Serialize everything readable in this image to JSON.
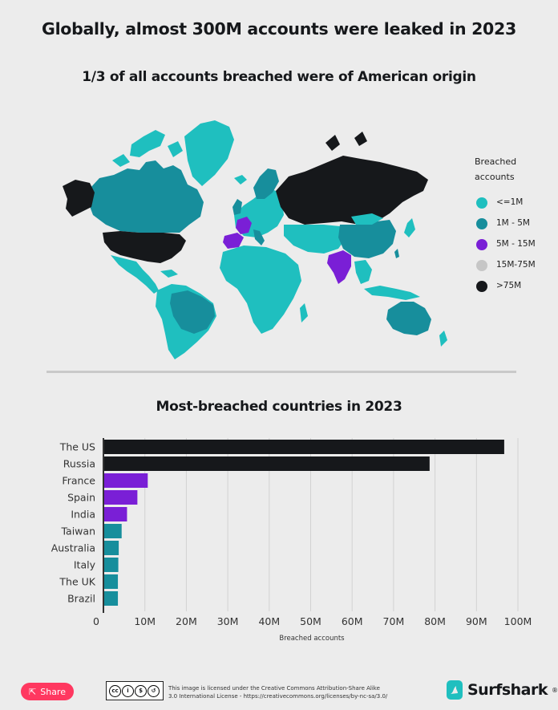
{
  "header": {
    "title": "Globally, almost 300M accounts were leaked in 2023",
    "subtitle": "1/3 of all accounts breached were of American origin"
  },
  "map": {
    "legend": {
      "title_line1": "Breached",
      "title_line2": "accounts",
      "items": [
        {
          "label": "<=1M",
          "color": "#1fbfbf"
        },
        {
          "label": "1M - 5M",
          "color": "#178e9c"
        },
        {
          "label": "5M - 15M",
          "color": "#7a1fd6"
        },
        {
          "label": "15M-75M",
          "color": "#c6c6c6"
        },
        {
          "label": ">75M",
          "color": "#16181b"
        }
      ]
    }
  },
  "chart_section": {
    "title": "Most-breached countries in 2023"
  },
  "chart_data": {
    "type": "bar",
    "orientation": "horizontal",
    "title": "Most-breached countries in 2023",
    "xlabel": "Breached accounts",
    "ylabel": "",
    "xlim": [
      0,
      105
    ],
    "x_ticks": [
      "0",
      "10M",
      "20M",
      "30M",
      "40M",
      "50M",
      "60M",
      "70M",
      "80M",
      "90M",
      "100M"
    ],
    "grid": true,
    "categories": [
      "The US",
      "Russia",
      "France",
      "Spain",
      "India",
      "Taiwan",
      "Australia",
      "Italy",
      "The UK",
      "Brazil"
    ],
    "values": [
      96.5,
      78.5,
      10.5,
      8.0,
      5.5,
      4.2,
      3.5,
      3.4,
      3.3,
      3.3
    ],
    "unit": "M",
    "bar_colors": [
      "#16181b",
      "#16181b",
      "#7a1fd6",
      "#7a1fd6",
      "#7a1fd6",
      "#178e9c",
      "#178e9c",
      "#178e9c",
      "#178e9c",
      "#178e9c"
    ]
  },
  "footer": {
    "share_label": "Share",
    "cc_icons": [
      "cc",
      "by",
      "nc",
      "sa"
    ],
    "license_line1": "This image is licensed under the Creative Commons Attribution-Share Alike",
    "license_line2": "3.0 International License - https://creativecommons.org/licenses/by-nc-sa/3.0/",
    "brand_name": "Surfshark",
    "brand_mark": "®",
    "brand_color": "#1fbfbf"
  },
  "colors": {
    "low": "#1fbfbf",
    "mid": "#178e9c",
    "high": "#7a1fd6",
    "very_high": "#c6c6c6",
    "top": "#16181b",
    "background": "#ececec"
  }
}
